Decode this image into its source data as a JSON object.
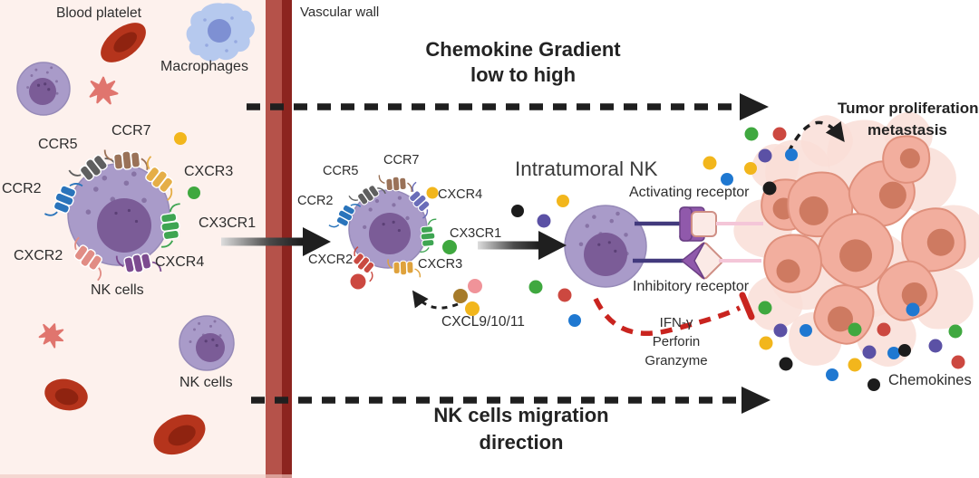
{
  "panels": {
    "blood_vessel": {
      "blood_platelet_label": "Blood platelet",
      "macrophages_label": "Macrophages",
      "nk_cells_label": "NK cells",
      "nk_cells_label_2": "NK cells",
      "receptors": [
        {
          "label": "CCR5",
          "color": "#5f5f5f"
        },
        {
          "label": "CCR7",
          "color": "#9a7258"
        },
        {
          "label": "CXCR3",
          "color": "#e5ae47"
        },
        {
          "label": "CCR2",
          "color": "#2a74bb"
        },
        {
          "label": "CX3CR1",
          "color": "#3ea552"
        },
        {
          "label": "CXCR2",
          "color": "#e18d85"
        },
        {
          "label": "CXCR4",
          "color": "#7c4b90"
        }
      ]
    },
    "vessel_wall": {
      "label": "Vascular wall"
    },
    "tumor_tissue": {
      "chemokine_gradient_label_line1": "Chemokine Gradient",
      "chemokine_gradient_label_line2": "low to high",
      "migrating_nk_receptors": [
        {
          "label": "CCR5",
          "color": "#5f5f5f"
        },
        {
          "label": "CCR7",
          "color": "#9a7258"
        },
        {
          "label": "CXCR4",
          "color": "#6a6db9"
        },
        {
          "label": "CCR2",
          "color": "#2a74bb"
        },
        {
          "label": "CX3CR1",
          "color": "#3ea552"
        },
        {
          "label": "CXCR2",
          "color": "#c94a41"
        },
        {
          "label": "CXCR3",
          "color": "#dfa23c"
        }
      ],
      "chemokine_source_label": "CXCL9/10/11",
      "intratumoral_nk_label": "Intratumoral NK",
      "activating_receptor_label": "Activating receptor",
      "inhibitory_receptor_label": "Inhibitory receptor",
      "effector_molecules": [
        "IFN-γ",
        "Perforin",
        "Granzyme"
      ],
      "tumor_label_line1": "Tumor proliferation",
      "tumor_label_line2": "metastasis",
      "chemokines_label": "Chemokines",
      "migration_label_line1": "NK cells migration",
      "migration_label_line2": "direction"
    }
  },
  "palette": {
    "vessel_lumen_bg": "#fdf1ed",
    "vessel_wall_light": "#b5524a",
    "vessel_wall_dark": "#8c241f",
    "nk_cell_body": "#a99bc9",
    "nk_cell_body_border": "#968ab8",
    "nk_cell_nucleus": "#7b5c97",
    "macrophage_body": "#b6c9ee",
    "macrophage_nucleus": "#7e90d3",
    "red_blood_cell": "#b5341c",
    "red_blood_cell_inner": "#8f2310",
    "platelet": "#e0756e",
    "tumor_cell": "#f2ae9e",
    "tumor_cell_border": "#df907c",
    "tumor_cell_nucleus": "#ce7a61",
    "tumor_cell_faded": "#f9ded7",
    "receptor_stalk": "#423a7d",
    "receptor_head": "#9059ab",
    "receptor_head_border": "#6a3f85",
    "ligand_fill": "#fbeae6",
    "ligand_border": "#cf8f85",
    "ligand_connector": "#f4c6d8",
    "arrow_black": "#1f1f1f",
    "inhibition_red": "#c9241f",
    "chemokine_dots": {
      "yellow": "#f2b61c",
      "green": "#3fa83f",
      "blue": "#1f78d1",
      "purple": "#5b51a5",
      "red": "#cc4840",
      "black": "#1c1c1c",
      "brown": "#a67b2a",
      "pink": "#f09399"
    }
  }
}
